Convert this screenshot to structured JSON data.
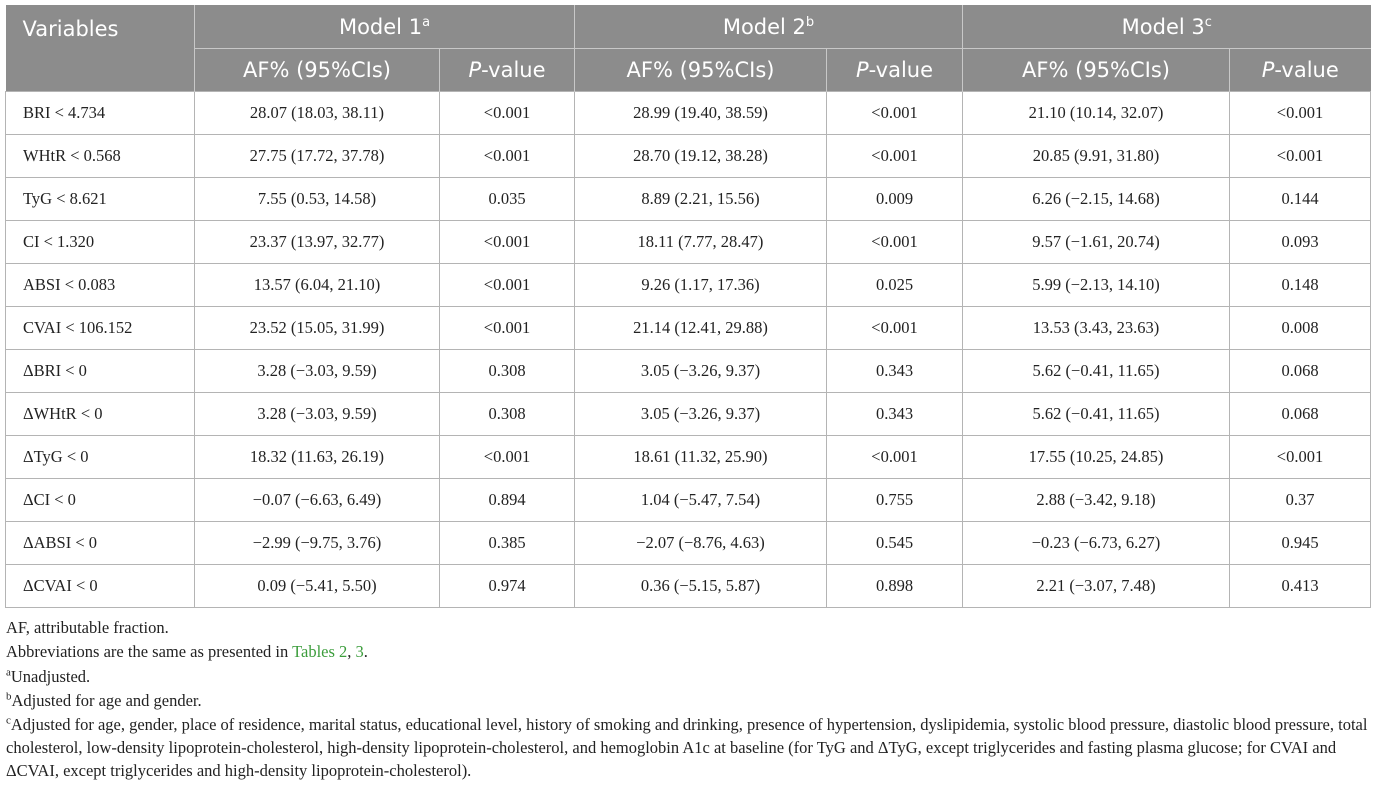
{
  "table": {
    "header": {
      "variables_label": "Variables",
      "models": [
        {
          "name": "Model 1",
          "sup": "a"
        },
        {
          "name": "Model 2",
          "sup": "b"
        },
        {
          "name": "Model 3",
          "sup": "c"
        }
      ],
      "af_label": "AF% (95%CIs)",
      "p_letter": "P",
      "p_suffix": "-value"
    },
    "rows": [
      {
        "variable": "BRI < 4.734",
        "m1_af": "28.07 (18.03, 38.11)",
        "m1_p": "<0.001",
        "m2_af": "28.99 (19.40, 38.59)",
        "m2_p": "<0.001",
        "m3_af": "21.10 (10.14, 32.07)",
        "m3_p": "<0.001"
      },
      {
        "variable": "WHtR < 0.568",
        "m1_af": "27.75 (17.72, 37.78)",
        "m1_p": "<0.001",
        "m2_af": "28.70 (19.12, 38.28)",
        "m2_p": "<0.001",
        "m3_af": "20.85 (9.91, 31.80)",
        "m3_p": "<0.001"
      },
      {
        "variable": "TyG < 8.621",
        "m1_af": "7.55 (0.53, 14.58)",
        "m1_p": "0.035",
        "m2_af": "8.89 (2.21, 15.56)",
        "m2_p": "0.009",
        "m3_af": "6.26 (−2.15, 14.68)",
        "m3_p": "0.144"
      },
      {
        "variable": "CI < 1.320",
        "m1_af": "23.37 (13.97, 32.77)",
        "m1_p": "<0.001",
        "m2_af": "18.11 (7.77, 28.47)",
        "m2_p": "<0.001",
        "m3_af": "9.57 (−1.61, 20.74)",
        "m3_p": "0.093"
      },
      {
        "variable": "ABSI < 0.083",
        "m1_af": "13.57 (6.04, 21.10)",
        "m1_p": "<0.001",
        "m2_af": "9.26 (1.17, 17.36)",
        "m2_p": "0.025",
        "m3_af": "5.99 (−2.13, 14.10)",
        "m3_p": "0.148"
      },
      {
        "variable": "CVAI < 106.152",
        "m1_af": "23.52 (15.05, 31.99)",
        "m1_p": "<0.001",
        "m2_af": "21.14 (12.41, 29.88)",
        "m2_p": "<0.001",
        "m3_af": "13.53 (3.43, 23.63)",
        "m3_p": "0.008"
      },
      {
        "variable": "ΔBRI < 0",
        "m1_af": "3.28 (−3.03, 9.59)",
        "m1_p": "0.308",
        "m2_af": "3.05 (−3.26, 9.37)",
        "m2_p": "0.343",
        "m3_af": "5.62 (−0.41, 11.65)",
        "m3_p": "0.068"
      },
      {
        "variable": "ΔWHtR < 0",
        "m1_af": "3.28 (−3.03, 9.59)",
        "m1_p": "0.308",
        "m2_af": "3.05 (−3.26, 9.37)",
        "m2_p": "0.343",
        "m3_af": "5.62 (−0.41, 11.65)",
        "m3_p": "0.068"
      },
      {
        "variable": "ΔTyG < 0",
        "m1_af": "18.32 (11.63, 26.19)",
        "m1_p": "<0.001",
        "m2_af": "18.61 (11.32, 25.90)",
        "m2_p": "<0.001",
        "m3_af": "17.55 (10.25, 24.85)",
        "m3_p": "<0.001"
      },
      {
        "variable": "ΔCI < 0",
        "m1_af": "−0.07 (−6.63, 6.49)",
        "m1_p": "0.894",
        "m2_af": "1.04 (−5.47, 7.54)",
        "m2_p": "0.755",
        "m3_af": "2.88 (−3.42, 9.18)",
        "m3_p": "0.37"
      },
      {
        "variable": "ΔABSI < 0",
        "m1_af": "−2.99 (−9.75, 3.76)",
        "m1_p": "0.385",
        "m2_af": "−2.07 (−8.76, 4.63)",
        "m2_p": "0.545",
        "m3_af": "−0.23 (−6.73, 6.27)",
        "m3_p": "0.945"
      },
      {
        "variable": "ΔCVAI < 0",
        "m1_af": "0.09 (−5.41, 5.50)",
        "m1_p": "0.974",
        "m2_af": "0.36 (−5.15, 5.87)",
        "m2_p": "0.898",
        "m3_af": "2.21 (−3.07, 7.48)",
        "m3_p": "0.413"
      }
    ]
  },
  "footnotes": {
    "af_note": "AF, attributable fraction.",
    "abbrev_prefix": "Abbreviations are the same as presented in ",
    "abbrev_link1": "Tables 2",
    "abbrev_sep": ", ",
    "abbrev_link2": "3",
    "abbrev_suffix": ".",
    "note_a": {
      "mark": "a",
      "text": "Unadjusted."
    },
    "note_b": {
      "mark": "b",
      "text": "Adjusted for age and gender."
    },
    "note_c": {
      "mark": "c",
      "text": "Adjusted for age, gender, place of residence, marital status, educational level, history of smoking and drinking, presence of hypertension, dyslipidemia, systolic blood pressure, diastolic blood pressure, total cholesterol, low-density lipoprotein-cholesterol, high-density lipoprotein-cholesterol, and hemoglobin A1c at baseline (for TyG and ΔTyG, except triglycerides and fasting plasma glucose; for CVAI and ΔCVAI, except triglycerides and high-density lipoprotein-cholesterol)."
    }
  },
  "colors": {
    "header_bg": "#8c8c8c",
    "header_text": "#ffffff",
    "link": "#3c9d3c",
    "border": "#b4b4b4"
  }
}
